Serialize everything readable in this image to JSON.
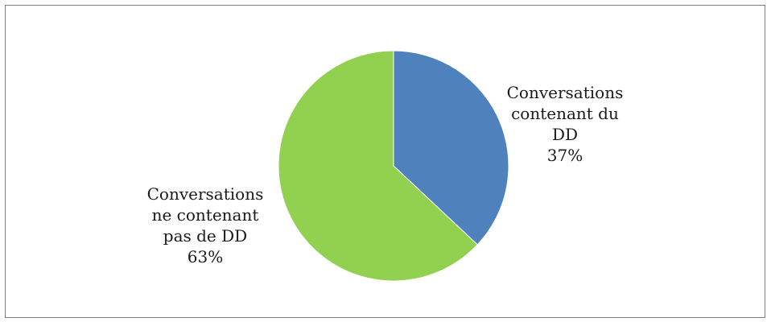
{
  "chart_data": {
    "type": "pie",
    "title": "",
    "slices": [
      {
        "label": "Conversations\ncontenant du\nDD",
        "value": 37,
        "value_label": "37%",
        "color": "#4f81bd"
      },
      {
        "label": "Conversations\nne contenant\npas de DD",
        "value": 63,
        "value_label": "63%",
        "color": "#92d050"
      }
    ],
    "start_angle": "12 o'clock",
    "direction": "clockwise",
    "legend": "none",
    "data_labels": "outside"
  }
}
